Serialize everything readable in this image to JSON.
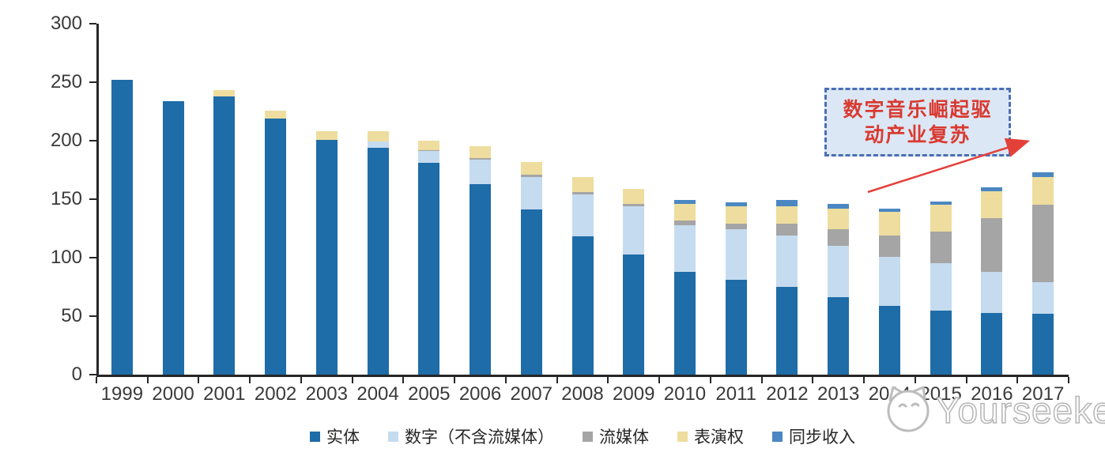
{
  "chart_data": {
    "type": "bar",
    "stacked": true,
    "title": "",
    "unit_note": "",
    "categories": [
      "1999",
      "2000",
      "2001",
      "2002",
      "2003",
      "2004",
      "2005",
      "2006",
      "2007",
      "2008",
      "2009",
      "2010",
      "2011",
      "2012",
      "2013",
      "2014",
      "2015",
      "2016",
      "2017"
    ],
    "series": [
      {
        "name": "实体",
        "color": "#1e6ca8",
        "values": [
          252,
          234,
          238,
          219,
          201,
          194,
          181,
          163,
          141,
          118,
          103,
          88,
          81,
          75,
          66,
          59,
          55,
          53,
          52
        ]
      },
      {
        "name": "数字（不含流媒体）",
        "color": "#c5dbef",
        "values": [
          0,
          0,
          0,
          0,
          0,
          5,
          10,
          21,
          28,
          36,
          41,
          40,
          43,
          44,
          44,
          42,
          40,
          35,
          27
        ]
      },
      {
        "name": "流媒体",
        "color": "#a5a5a5",
        "values": [
          0,
          0,
          0,
          0,
          0,
          0,
          1,
          1,
          2,
          2,
          2,
          4,
          5,
          10,
          14,
          18,
          27,
          46,
          66
        ]
      },
      {
        "name": "表演权",
        "color": "#eedd9e",
        "values": [
          0,
          0,
          5,
          7,
          7,
          9,
          8,
          10,
          11,
          13,
          13,
          14,
          15,
          15,
          18,
          20,
          23,
          23,
          24
        ]
      },
      {
        "name": "同步收入",
        "color": "#4b87c2",
        "values": [
          0,
          0,
          0,
          0,
          0,
          0,
          0,
          0,
          0,
          0,
          0,
          3,
          3,
          5,
          4,
          3,
          3,
          3,
          4
        ]
      }
    ],
    "totals": [
      252,
      234,
      243,
      226,
      208,
      208,
      200,
      195,
      182,
      169,
      159,
      149,
      147,
      149,
      146,
      142,
      148,
      160,
      173
    ],
    "ylim": [
      0,
      300
    ],
    "yticks": [
      0,
      50,
      100,
      150,
      200,
      250,
      300
    ],
    "grid": false,
    "legend_position": "bottom"
  },
  "annotation": {
    "text": "数字音乐崛起驱动产业复苏",
    "lines": [
      "数字音乐崛起驱",
      "动产业复苏"
    ],
    "text_color": "#d93a30",
    "box_fill": "#dce7f5",
    "box_border": "#4a6fb5",
    "arrow_color": "#e4403a"
  },
  "watermark": {
    "text": "Yourseeker",
    "logo": "cat-face-icon",
    "color": "#b5b5b5"
  }
}
